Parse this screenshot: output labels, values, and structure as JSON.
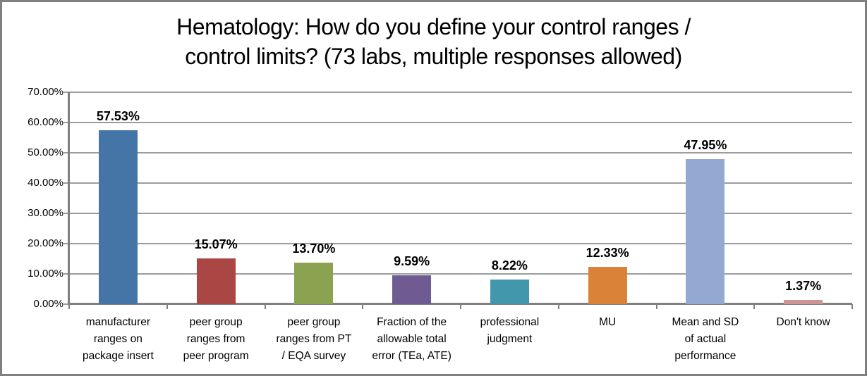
{
  "frame": {
    "border_color": "#7F7F7F",
    "background": "#FFFFFF"
  },
  "chart_data": {
    "type": "bar",
    "title": "Hematology: How do you define your control ranges / control limits? (73 labs, multiple responses allowed)",
    "title_lines": [
      "Hematology: How do you define your control ranges /",
      "control limits? (73 labs, multiple responses allowed)"
    ],
    "categories": [
      "manufacturer ranges on package insert",
      "peer group ranges from peer program",
      "peer group ranges from PT / EQA survey",
      "Fraction of the allowable total error (TEa, ATE)",
      "professional judgment",
      "MU",
      "Mean and SD of actual performance",
      "Don't know"
    ],
    "category_lines": [
      [
        "manufacturer",
        "ranges on",
        "package insert"
      ],
      [
        "peer group",
        "ranges from",
        "peer program"
      ],
      [
        "peer group",
        "ranges from PT",
        "/ EQA survey"
      ],
      [
        "Fraction of the",
        "allowable total",
        "error (TEa, ATE)"
      ],
      [
        "professional",
        "judgment"
      ],
      [
        "MU"
      ],
      [
        "Mean and SD",
        "of actual",
        "performance"
      ],
      [
        "Don't know"
      ]
    ],
    "values": [
      57.53,
      15.07,
      13.7,
      9.59,
      8.22,
      12.33,
      47.95,
      1.37
    ],
    "value_labels": [
      "57.53%",
      "15.07%",
      "13.70%",
      "9.59%",
      "8.22%",
      "12.33%",
      "47.95%",
      "1.37%"
    ],
    "bar_colors": [
      "#4575A7",
      "#AA4643",
      "#8BA351",
      "#6F5A91",
      "#4397AC",
      "#DA8238",
      "#93A9D2",
      "#CE9594"
    ],
    "y_ticks": [
      "70.00%",
      "60.00%",
      "50.00%",
      "40.00%",
      "30.00%",
      "20.00%",
      "10.00%",
      "0.00%"
    ],
    "ylim": [
      0,
      70
    ],
    "xlabel": "",
    "ylabel": "",
    "grid": true,
    "legend": "none",
    "gridline_color": "#9C9C9C",
    "axis_color": "#808080",
    "value_label_color": "#000000"
  }
}
